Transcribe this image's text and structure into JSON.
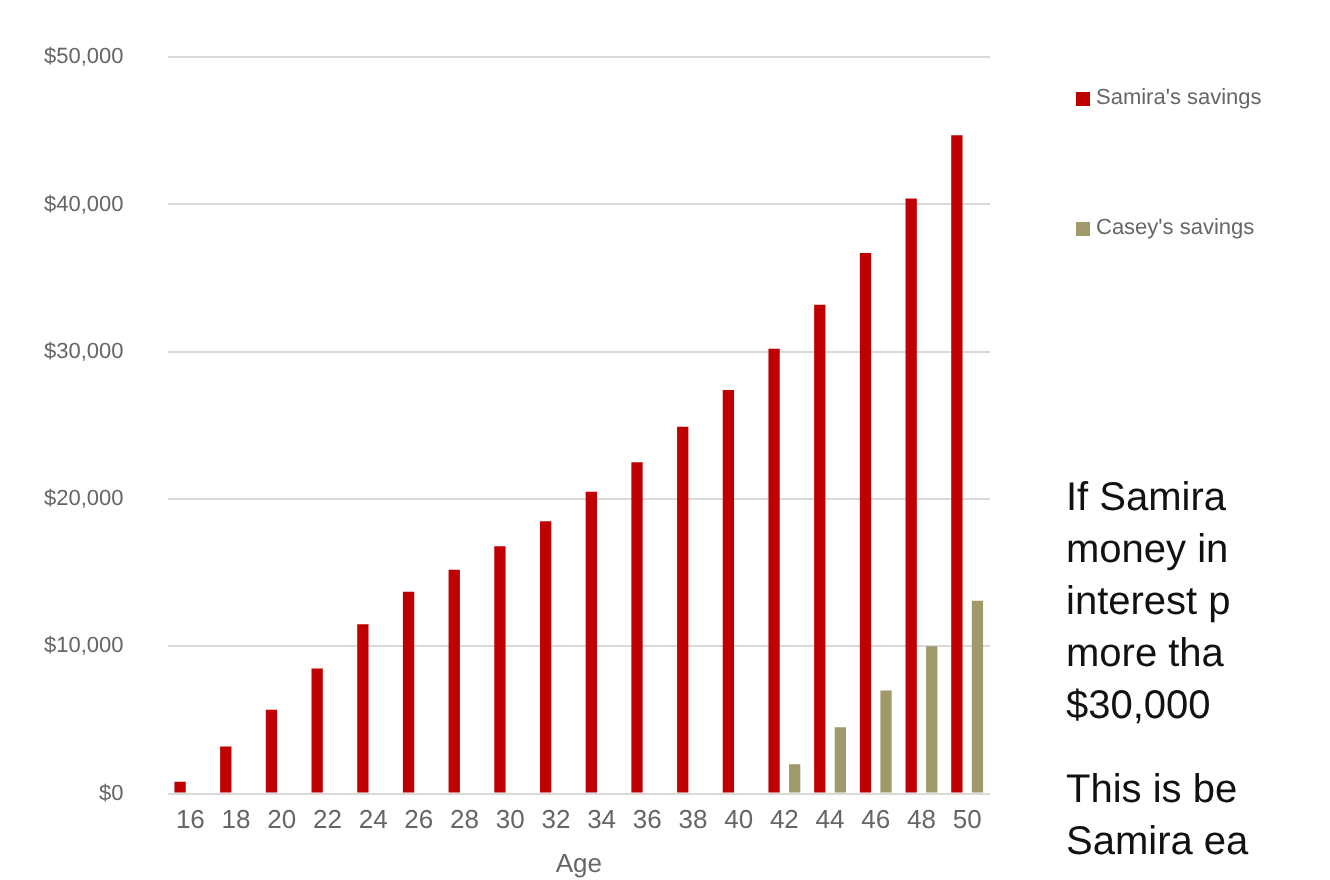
{
  "chart_data": {
    "type": "bar",
    "xlabel": "Age",
    "categories": [
      "16",
      "18",
      "20",
      "22",
      "24",
      "26",
      "28",
      "30",
      "32",
      "34",
      "36",
      "38",
      "40",
      "42",
      "44",
      "46",
      "48",
      "50"
    ],
    "series": [
      {
        "name": "Samira's savings",
        "color": "#c00000",
        "values": [
          800,
          3200,
          5700,
          8500,
          11500,
          13700,
          15200,
          16800,
          18500,
          20500,
          22500,
          24900,
          27400,
          30200,
          33200,
          36700,
          40400,
          44700
        ]
      },
      {
        "name": "Casey's savings",
        "color": "#a09a6a",
        "values": [
          null,
          null,
          null,
          null,
          null,
          null,
          null,
          null,
          null,
          null,
          null,
          null,
          null,
          2000,
          4500,
          7000,
          10000,
          13100
        ]
      }
    ],
    "ylim": [
      0,
      50000
    ],
    "yticks": [
      {
        "value": 0,
        "label": "$0"
      },
      {
        "value": 10000,
        "label": "$10,000"
      },
      {
        "value": 20000,
        "label": "$20,000"
      },
      {
        "value": 30000,
        "label": "$30,000"
      },
      {
        "value": 40000,
        "label": "$40,000"
      },
      {
        "value": 50000,
        "label": "$50,000"
      }
    ],
    "grid": "y",
    "legend": "right",
    "annotations": [
      "If Samira",
      "money in",
      "interest p",
      "more tha",
      "$30,000",
      "This is be",
      "Samira ea"
    ]
  }
}
